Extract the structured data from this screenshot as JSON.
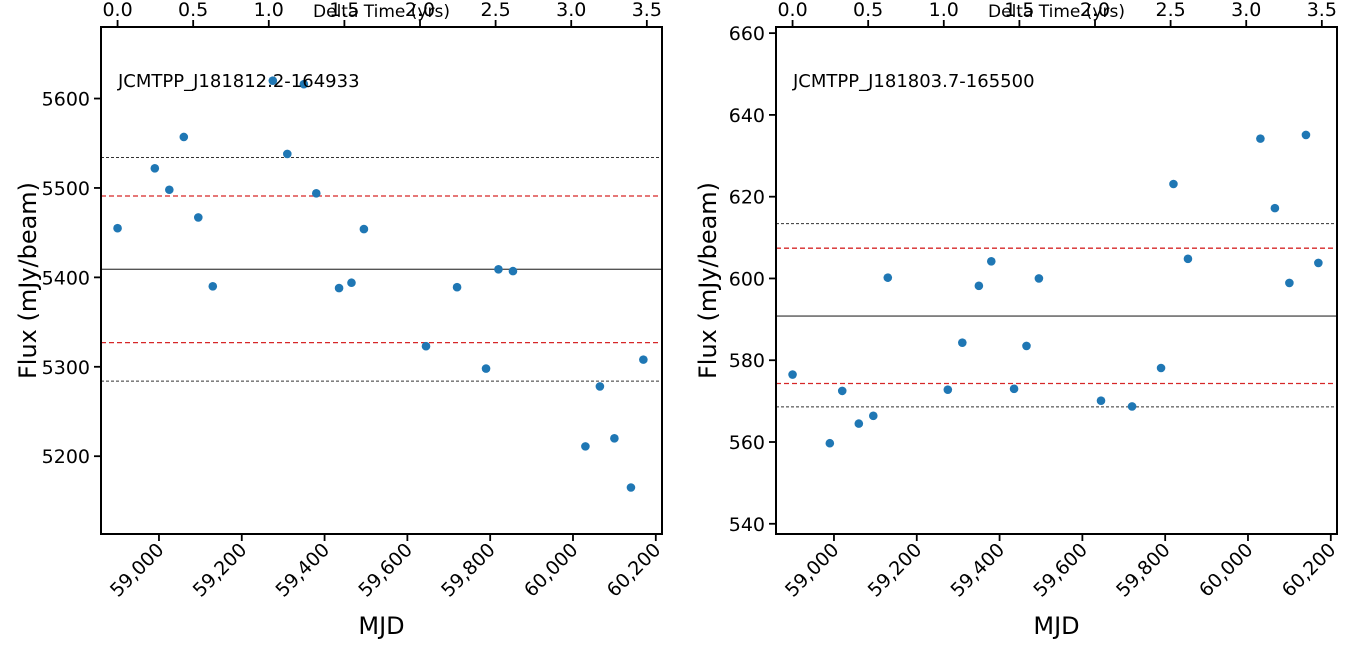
{
  "chart_data": [
    {
      "type": "scatter",
      "annotation": "JCMTPP_J181812.2-164933",
      "xlabel": "MJD",
      "ylabel": "Flux (mJy/beam)",
      "top_xlabel": "Delta Time (yrs)",
      "xlim": [
        58860,
        60215
      ],
      "ylim": [
        5113,
        5680
      ],
      "x_ticks": [
        59000,
        59200,
        59400,
        59600,
        59800,
        60000,
        60200
      ],
      "x_tick_labels": [
        "59,000",
        "59,200",
        "59,400",
        "59,600",
        "59,800",
        "60,000",
        "60,200"
      ],
      "y_ticks": [
        5200,
        5300,
        5400,
        5500,
        5600
      ],
      "y_tick_labels": [
        "5200",
        "5300",
        "5400",
        "5500",
        "5600"
      ],
      "top_ticks": [
        0.0,
        0.5,
        1.0,
        1.5,
        2.0,
        2.5,
        3.0,
        3.5
      ],
      "top_tick_labels": [
        "0.0",
        "0.5",
        "1.0",
        "1.5",
        "2.0",
        "2.5",
        "3.0",
        "3.5"
      ],
      "top_axis_origin_mjd": 58900,
      "point_color": "#1f77b4",
      "mean": 5409,
      "mean_color": "#555555",
      "sigma_lines": [
        5491,
        5327
      ],
      "sigma_color": "#d62728",
      "outer_lines": [
        5534,
        5284
      ],
      "outer_color": "#333333",
      "points": [
        {
          "x": 58900,
          "y": 5455
        },
        {
          "x": 58990,
          "y": 5522
        },
        {
          "x": 59025,
          "y": 5498
        },
        {
          "x": 59060,
          "y": 5557
        },
        {
          "x": 59095,
          "y": 5467
        },
        {
          "x": 59130,
          "y": 5390
        },
        {
          "x": 59275,
          "y": 5620
        },
        {
          "x": 59310,
          "y": 5538
        },
        {
          "x": 59350,
          "y": 5616
        },
        {
          "x": 59380,
          "y": 5494
        },
        {
          "x": 59435,
          "y": 5388
        },
        {
          "x": 59465,
          "y": 5394
        },
        {
          "x": 59495,
          "y": 5454
        },
        {
          "x": 59645,
          "y": 5323
        },
        {
          "x": 59720,
          "y": 5389
        },
        {
          "x": 59790,
          "y": 5298
        },
        {
          "x": 59820,
          "y": 5409
        },
        {
          "x": 59855,
          "y": 5407
        },
        {
          "x": 60030,
          "y": 5211
        },
        {
          "x": 60065,
          "y": 5278
        },
        {
          "x": 60100,
          "y": 5220
        },
        {
          "x": 60140,
          "y": 5165
        },
        {
          "x": 60170,
          "y": 5308
        }
      ]
    },
    {
      "type": "scatter",
      "annotation": "JCMTPP_J181803.7-165500",
      "xlabel": "MJD",
      "ylabel": "Flux (mJy/beam)",
      "top_xlabel": "Delta Time (yrs)",
      "xlim": [
        58860,
        60215
      ],
      "ylim": [
        537.5,
        661.5
      ],
      "x_ticks": [
        59000,
        59200,
        59400,
        59600,
        59800,
        60000,
        60200
      ],
      "x_tick_labels": [
        "59,000",
        "59,200",
        "59,400",
        "59,600",
        "59,800",
        "60,000",
        "60,200"
      ],
      "y_ticks": [
        540,
        560,
        580,
        600,
        620,
        640,
        660
      ],
      "y_tick_labels": [
        "540",
        "560",
        "580",
        "600",
        "620",
        "640",
        "660"
      ],
      "top_ticks": [
        0.0,
        0.5,
        1.0,
        1.5,
        2.0,
        2.5,
        3.0,
        3.5
      ],
      "top_tick_labels": [
        "0.0",
        "0.5",
        "1.0",
        "1.5",
        "2.0",
        "2.5",
        "3.0",
        "3.5"
      ],
      "top_axis_origin_mjd": 58900,
      "point_color": "#1f77b4",
      "mean": 590.8,
      "mean_color": "#555555",
      "sigma_lines": [
        607.4,
        574.3
      ],
      "sigma_color": "#d62728",
      "outer_lines": [
        613.4,
        568.6
      ],
      "outer_color": "#333333",
      "points": [
        {
          "x": 58900,
          "y": 576.5
        },
        {
          "x": 58990,
          "y": 559.7
        },
        {
          "x": 59020,
          "y": 572.5
        },
        {
          "x": 59060,
          "y": 564.5
        },
        {
          "x": 59095,
          "y": 566.4
        },
        {
          "x": 59130,
          "y": 600.2
        },
        {
          "x": 59275,
          "y": 572.8
        },
        {
          "x": 59310,
          "y": 584.3
        },
        {
          "x": 59350,
          "y": 598.2
        },
        {
          "x": 59380,
          "y": 604.2
        },
        {
          "x": 59435,
          "y": 573.0
        },
        {
          "x": 59465,
          "y": 583.5
        },
        {
          "x": 59495,
          "y": 600.0
        },
        {
          "x": 59645,
          "y": 570.1
        },
        {
          "x": 59720,
          "y": 568.7
        },
        {
          "x": 59790,
          "y": 578.1
        },
        {
          "x": 59820,
          "y": 623.1
        },
        {
          "x": 59855,
          "y": 604.8
        },
        {
          "x": 60030,
          "y": 634.2
        },
        {
          "x": 60065,
          "y": 617.2
        },
        {
          "x": 60100,
          "y": 598.9
        },
        {
          "x": 60140,
          "y": 635.1
        },
        {
          "x": 60170,
          "y": 603.8
        }
      ]
    }
  ]
}
